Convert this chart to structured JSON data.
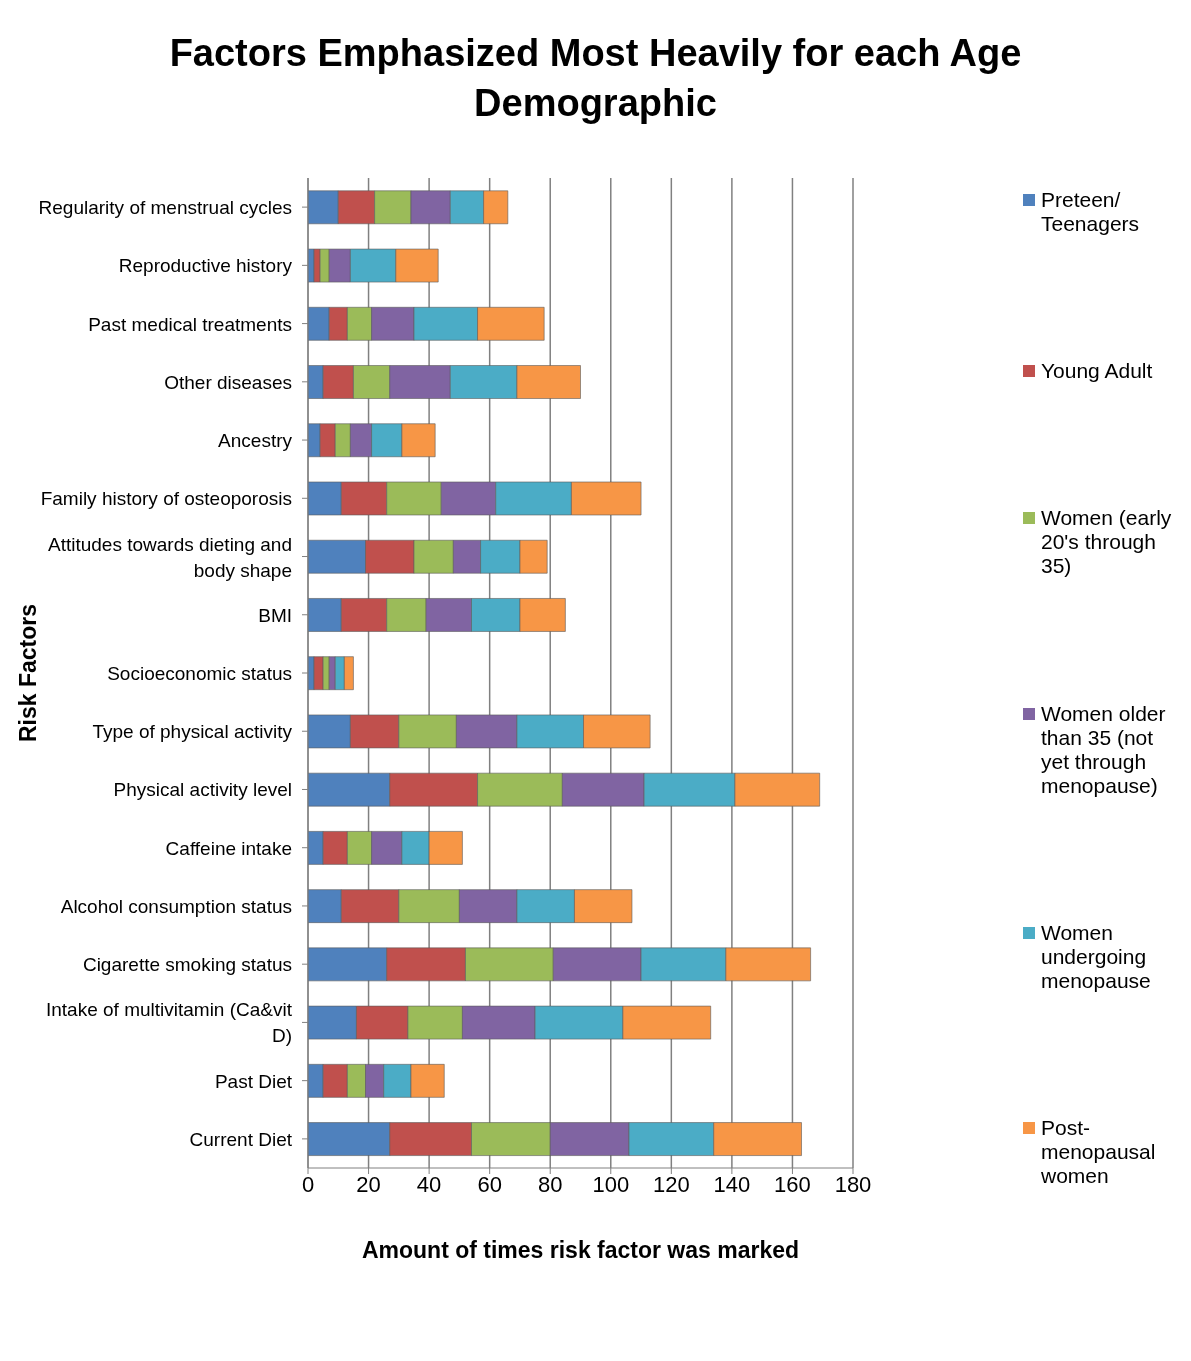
{
  "chart_data": {
    "type": "bar",
    "orientation": "horizontal",
    "stacked": true,
    "title": "Factors Emphasized Most Heavily for each Age Demographic",
    "xlabel": "Amount of times risk factor was marked",
    "ylabel": "Risk Factors",
    "categories": [
      "Regularity of menstrual cycles",
      "Reproductive history",
      "Past medical treatments",
      "Other diseases",
      "Ancestry",
      "Family history of osteoporosis",
      "Attitudes towards dieting and body shape",
      "BMI",
      "Socioeconomic status",
      "Type of physical activity",
      "Physical activity level",
      "Caffeine intake",
      "Alcohol consumption status",
      "Cigarette smoking status",
      "Intake of multivitamin (Ca&vit D)",
      "Past Diet",
      "Current Diet"
    ],
    "series": [
      {
        "name": "Preteen/ Teenagers",
        "color": "#4f81bd",
        "values": [
          10,
          2,
          7,
          5,
          4,
          11,
          19,
          11,
          2,
          14,
          27,
          5,
          11,
          26,
          16,
          5,
          27
        ]
      },
      {
        "name": "Young Adult",
        "color": "#c0504d",
        "values": [
          12,
          2,
          6,
          10,
          5,
          15,
          16,
          15,
          3,
          16,
          29,
          8,
          19,
          26,
          17,
          8,
          27
        ]
      },
      {
        "name": "Women (early 20's through 35)",
        "color": "#9bbb59",
        "values": [
          12,
          3,
          8,
          12,
          5,
          18,
          13,
          13,
          2,
          19,
          28,
          8,
          20,
          29,
          18,
          6,
          26
        ]
      },
      {
        "name": "Women older than 35 (not yet through menopause)",
        "color": "#8064a2",
        "values": [
          13,
          7,
          14,
          20,
          7,
          18,
          9,
          15,
          2,
          20,
          27,
          10,
          19,
          29,
          24,
          6,
          26
        ]
      },
      {
        "name": "Women undergoing menopause",
        "color": "#4bacc6",
        "values": [
          11,
          15,
          21,
          22,
          10,
          25,
          13,
          16,
          3,
          22,
          30,
          9,
          19,
          28,
          29,
          9,
          28
        ]
      },
      {
        "name": "Post-menopausal women",
        "color": "#f79646",
        "values": [
          8,
          14,
          22,
          21,
          11,
          23,
          9,
          15,
          3,
          22,
          28,
          11,
          19,
          28,
          29,
          11,
          29
        ]
      }
    ],
    "xlim": [
      0,
      180
    ],
    "xticks": [
      0,
      20,
      40,
      60,
      80,
      100,
      120,
      140,
      160,
      180
    ],
    "grid": "x",
    "legend": "right"
  }
}
